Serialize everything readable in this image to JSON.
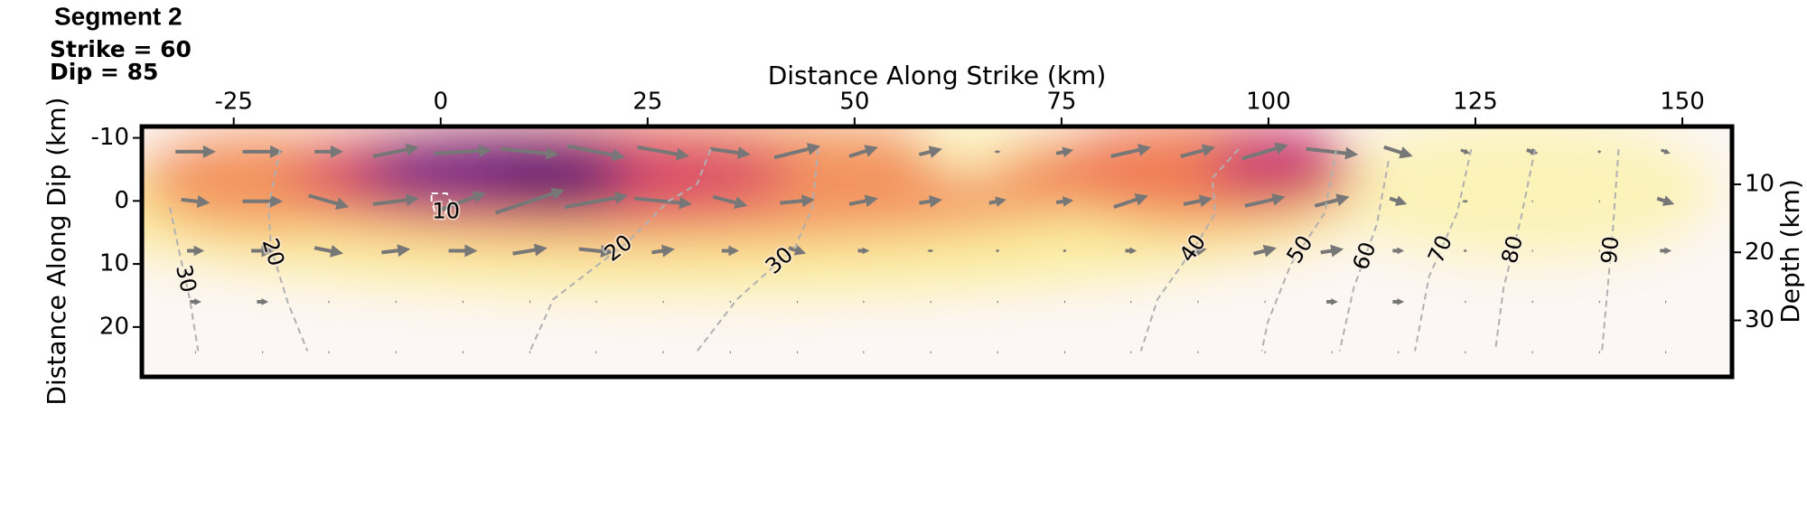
{
  "chart_data": {
    "type": "slip-map",
    "title": "Segment 2",
    "subtitle": [
      "Strike = 60",
      "Dip = 85"
    ],
    "xlabel": "Distance Along Strike (km)",
    "ylabel": "Distance Along Dip (km)",
    "y2label": "Depth (km)",
    "xlim": [
      -36.1,
      156.0
    ],
    "xticks": [
      -25,
      0,
      25,
      50,
      75,
      100,
      125,
      150
    ],
    "ylim": [
      -11.8,
      27.9
    ],
    "yticks": [
      -10,
      0,
      10,
      20
    ],
    "y2lim": [
      1.5,
      38.3
    ],
    "y2ticks": [
      10,
      20,
      30
    ],
    "arrow_color": "#777777",
    "contours": [
      {
        "level": 30,
        "color": "#b0b0b0",
        "x": [
          -32.7,
          -31.7,
          -30.3,
          -29.3
        ],
        "y": [
          1.0,
          7.4,
          15.6,
          23.8
        ]
      },
      {
        "level": 20,
        "color": "#b0b0b0",
        "x": [
          -19.4,
          -20.8,
          -20.5,
          -18.5,
          -16.1
        ],
        "y": [
          -8.2,
          1.0,
          7.4,
          16.0,
          23.8
        ]
      },
      {
        "level": 10,
        "color": "#ffffff",
        "x": [
          -1.1,
          0.75,
          1.3,
          0.06,
          -0.6,
          -1.1,
          -1.1
        ],
        "y": [
          -1.2,
          -1.2,
          0.6,
          2.8,
          2.1,
          0.06,
          -1.2
        ]
      },
      {
        "level": 20,
        "color": "#b0b0b0",
        "x": [
          32.6,
          31.0,
          27.5,
          22.6,
          13.6,
          10.8
        ],
        "y": [
          -8.2,
          -2.7,
          0.06,
          6.5,
          15.6,
          23.8
        ]
      },
      {
        "level": 30,
        "color": "#b0b0b0",
        "x": [
          45.6,
          44.9,
          42.8,
          35.8,
          31.0
        ],
        "y": [
          -8.2,
          1.0,
          7.4,
          15.6,
          23.8
        ]
      },
      {
        "level": 40,
        "color": "#b0b0b0",
        "x": [
          96.4,
          93.2,
          93.6,
          91.5,
          86.6,
          84.6
        ],
        "y": [
          -8.2,
          -3.6,
          1.9,
          6.5,
          15.6,
          23.8
        ]
      },
      {
        "level": 50,
        "color": "#b0b0b0",
        "x": [
          108.2,
          106.8,
          102.7,
          99.9,
          99.2
        ],
        "y": [
          -8.2,
          1.9,
          10.1,
          19.3,
          23.8
        ]
      },
      {
        "level": 60,
        "color": "#b0b0b0",
        "x": [
          114.5,
          113.1,
          110.3,
          108.6
        ],
        "y": [
          -6.3,
          3.7,
          13.8,
          23.8
        ]
      },
      {
        "level": 70,
        "color": "#b0b0b0",
        "x": [
          124.5,
          122.8,
          119.4,
          117.7
        ],
        "y": [
          -8.2,
          1.9,
          12.0,
          23.8
        ]
      },
      {
        "level": 80,
        "color": "#b0b0b0",
        "x": [
          132.2,
          130.5,
          128.4,
          127.4
        ],
        "y": [
          -8.2,
          2.8,
          13.8,
          23.8
        ]
      },
      {
        "level": 90,
        "color": "#b0b0b0",
        "x": [
          142.3,
          141.6,
          140.3
        ],
        "y": [
          -8.2,
          4.6,
          23.8
        ]
      }
    ],
    "vectors": {
      "x": [
        -29.6,
        -21.5,
        -13.5,
        -5.4,
        2.7,
        10.8,
        18.8,
        26.9,
        35.0,
        43.1,
        51.1,
        59.2,
        67.3,
        75.4,
        83.4,
        91.5,
        99.6,
        107.7,
        115.7,
        123.8,
        131.9,
        140.0,
        148.0
      ],
      "y": [
        -7.8,
        0.06,
        7.9,
        16.0,
        24.0
      ],
      "u": [
        [
          3.5,
          3.5,
          2.5,
          4,
          5,
          5,
          5,
          4.5,
          3.5,
          4,
          2.5,
          2,
          0.5,
          1.5,
          3.5,
          3,
          4,
          4.5,
          2.5,
          0.8,
          1,
          0.3,
          0.8
        ],
        [
          2.5,
          3.5,
          3.5,
          4,
          4,
          6,
          5.5,
          5,
          3,
          3,
          2.5,
          2,
          1.5,
          1.5,
          3,
          2.5,
          3.5,
          3,
          1.5,
          0.5,
          0.1,
          0.1,
          1.5
        ],
        [
          1.5,
          2,
          2.5,
          2.5,
          2.5,
          3,
          3,
          2,
          1.5,
          1.5,
          1,
          0.5,
          0.3,
          0.3,
          1,
          1.5,
          2,
          2,
          1,
          0.3,
          0.1,
          0.1,
          1
        ],
        [
          1,
          1,
          0.1,
          0.1,
          0.1,
          0.1,
          0.1,
          0.1,
          0.1,
          0.1,
          0.1,
          0.1,
          0.1,
          0.1,
          0.1,
          0.1,
          0.1,
          1,
          1,
          0.1,
          0.1,
          0.1,
          0.1
        ],
        [
          0.1,
          0.1,
          0.1,
          0.1,
          0.1,
          0.1,
          0.1,
          0.1,
          0.1,
          0.1,
          0.1,
          0.1,
          0.1,
          0.1,
          0.1,
          0.1,
          0.1,
          0.1,
          0.1,
          0.1,
          0.1,
          0.1,
          0.1
        ]
      ],
      "v": [
        [
          0,
          0,
          0,
          -0.8,
          -0.3,
          0.5,
          1,
          0.8,
          0.5,
          -1,
          -0.8,
          -0.5,
          0,
          -0.3,
          -0.8,
          -0.8,
          -1.2,
          0.5,
          0.8,
          0.3,
          0.3,
          0,
          0.3
        ],
        [
          0.3,
          0,
          1,
          -0.5,
          -1.5,
          -2,
          -1,
          0.5,
          0.8,
          -0.3,
          -0.5,
          -0.3,
          -0.3,
          -0.2,
          -1,
          -0.5,
          -0.8,
          -0.8,
          0.5,
          0,
          0,
          0,
          0.5
        ],
        [
          0,
          0,
          0.5,
          -0.3,
          0,
          -0.5,
          0.3,
          -0.3,
          0,
          0.5,
          0,
          0,
          0,
          0,
          0,
          -0.3,
          -0.5,
          -0.3,
          0,
          0,
          0,
          0,
          0
        ],
        [
          0,
          0,
          0,
          0,
          0,
          0,
          0,
          0,
          0,
          0,
          0,
          0,
          0,
          0,
          0,
          0,
          0,
          0,
          0,
          0,
          0,
          0,
          0
        ],
        [
          0,
          0,
          0,
          0,
          0,
          0,
          0,
          0,
          0,
          0,
          0,
          0,
          0,
          0,
          0,
          0,
          0,
          0,
          0,
          0,
          0,
          0,
          0
        ]
      ]
    }
  }
}
